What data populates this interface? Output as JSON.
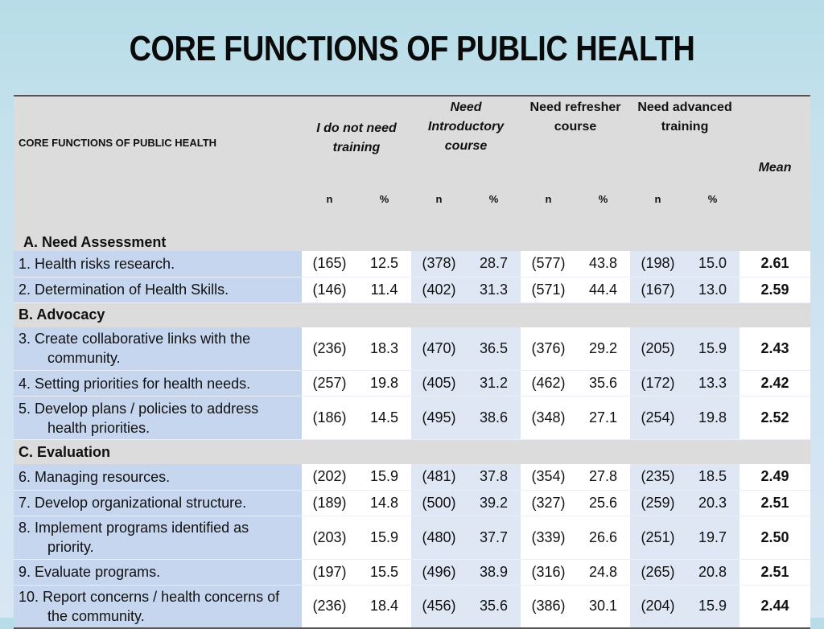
{
  "title": "CORE FUNCTIONS OF PUBLIC HEALTH",
  "table": {
    "header_first": "CORE FUNCTIONS OF PUBLIC HEALTH",
    "groups": [
      "I do not need training",
      "Need Introductory course",
      "Need refresher course",
      "Need advanced training"
    ],
    "mean_label": "Mean",
    "sub_n": "n",
    "sub_pct": "%",
    "sections": [
      {
        "title": "A. Need Assessment",
        "rows": [
          {
            "line1": "1.   Health risks research.",
            "line2": "",
            "values": [
              "(165)",
              "12.5",
              "(378)",
              "28.7",
              "(577)",
              "43.8",
              "(198)",
              "15.0"
            ],
            "mean": "2.61"
          },
          {
            "line1": "2.  Determination of Health Skills.",
            "line2": "",
            "values": [
              "(146)",
              "11.4",
              "(402)",
              "31.3",
              "(571)",
              "44.4",
              "(167)",
              "13.0"
            ],
            "mean": "2.59"
          }
        ]
      },
      {
        "title": "B.  Advocacy",
        "rows": [
          {
            "line1": "3. Create collaborative links with the",
            "line2": "community.",
            "values": [
              "(236)",
              "18.3",
              "(470)",
              "36.5",
              "(376)",
              "29.2",
              "(205)",
              "15.9"
            ],
            "mean": "2.43"
          },
          {
            "line1": "4.  Setting priorities for health needs.",
            "line2": "",
            "values": [
              "(257)",
              "19.8",
              "(405)",
              "31.2",
              "(462)",
              "35.6",
              "(172)",
              "13.3"
            ],
            "mean": "2.42"
          },
          {
            "line1": "5.  Develop plans / policies to address",
            "line2": "health priorities.",
            "values": [
              "(186)",
              "14.5",
              "(495)",
              "38.6",
              "(348)",
              "27.1",
              "(254)",
              "19.8"
            ],
            "mean": "2.52"
          }
        ]
      },
      {
        "title": "C.  Evaluation",
        "rows": [
          {
            "line1": "6.   Managing resources.",
            "line2": "",
            "values": [
              "(202)",
              "15.9",
              "(481)",
              "37.8",
              "(354)",
              "27.8",
              "(235)",
              "18.5"
            ],
            "mean": "2.49"
          },
          {
            "line1": "7.    Develop organizational structure.",
            "line2": "",
            "values": [
              "(189)",
              "14.8",
              "(500)",
              "39.2",
              "(327)",
              "25.6",
              "(259)",
              "20.3"
            ],
            "mean": "2.51"
          },
          {
            "line1": "8.    Implement programs identified as",
            "line2": "priority.",
            "values": [
              "(203)",
              "15.9",
              "(480)",
              "37.7",
              "(339)",
              "26.6",
              "(251)",
              "19.7"
            ],
            "mean": "2.50"
          },
          {
            "line1": "9.     Evaluate programs.",
            "line2": "",
            "values": [
              "(197)",
              "15.5",
              "(496)",
              "38.9",
              "(316)",
              "24.8",
              "(265)",
              "20.8"
            ],
            "mean": "2.51"
          },
          {
            "line1": "10.   Report concerns / health concerns of",
            "line2": "the community.",
            "values": [
              "(236)",
              "18.4",
              "(456)",
              "35.6",
              "(386)",
              "30.1",
              "(204)",
              "15.9"
            ],
            "mean": "2.44"
          }
        ]
      }
    ]
  }
}
